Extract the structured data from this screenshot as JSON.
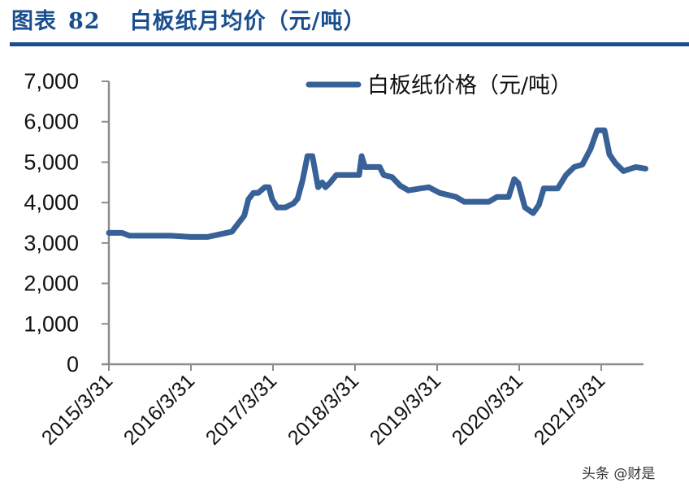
{
  "header": {
    "figure_label": "图表",
    "figure_number": "82",
    "title": "白板纸月均价（元/吨）"
  },
  "watermark": "头条 @财是",
  "colors": {
    "title": "#1a4f8f",
    "rule": "#1c4e8c",
    "series": "#386197",
    "axis": "#8c8c8c"
  },
  "chart_data": {
    "type": "line",
    "title": "白板纸月均价（元/吨）",
    "xlabel": "",
    "ylabel": "",
    "ylim": [
      0,
      7000
    ],
    "yticks": [
      0,
      1000,
      2000,
      3000,
      4000,
      5000,
      6000,
      7000
    ],
    "ytick_labels": [
      "0",
      "1,000",
      "2,000",
      "3,000",
      "4,000",
      "5,000",
      "6,000",
      "7,000"
    ],
    "xtick_labels": [
      "2015/3/31",
      "2016/3/31",
      "2017/3/31",
      "2018/3/31",
      "2019/3/31",
      "2020/3/31",
      "2021/3/31"
    ],
    "grid": false,
    "legend": {
      "position": "top-right",
      "entries": [
        "白板纸价格（元/吨）"
      ]
    },
    "series": [
      {
        "name": "白板纸价格（元/吨）",
        "x": [
          2015.25,
          2015.41,
          2015.5,
          2015.75,
          2016.0,
          2016.25,
          2016.45,
          2016.75,
          2016.9,
          2016.95,
          2017.01,
          2017.07,
          2017.15,
          2017.2,
          2017.24,
          2017.3,
          2017.4,
          2017.5,
          2017.55,
          2017.61,
          2017.67,
          2017.73,
          2017.8,
          2017.85,
          2017.89,
          2017.94,
          2018.02,
          2018.1,
          2018.3,
          2018.33,
          2018.37,
          2018.55,
          2018.6,
          2018.7,
          2018.8,
          2018.9,
          2019.05,
          2019.15,
          2019.28,
          2019.48,
          2019.58,
          2019.88,
          2019.98,
          2020.12,
          2020.19,
          2020.24,
          2020.32,
          2020.42,
          2020.49,
          2020.55,
          2020.72,
          2020.82,
          2020.92,
          2021.02,
          2021.12,
          2021.2,
          2021.29,
          2021.35,
          2021.42,
          2021.52,
          2021.67,
          2021.79
        ],
        "values": [
          3250,
          3250,
          3180,
          3180,
          3180,
          3150,
          3150,
          3280,
          3680,
          4080,
          4240,
          4240,
          4380,
          4380,
          4080,
          3880,
          3880,
          3980,
          4100,
          4550,
          5150,
          5150,
          4380,
          4500,
          4380,
          4480,
          4680,
          4680,
          4680,
          5150,
          4880,
          4880,
          4680,
          4630,
          4420,
          4300,
          4350,
          4380,
          4240,
          4140,
          4020,
          4020,
          4140,
          4140,
          4580,
          4480,
          3880,
          3740,
          3940,
          4350,
          4350,
          4680,
          4880,
          4940,
          5330,
          5790,
          5790,
          5190,
          4980,
          4780,
          4880,
          4840
        ]
      }
    ]
  }
}
